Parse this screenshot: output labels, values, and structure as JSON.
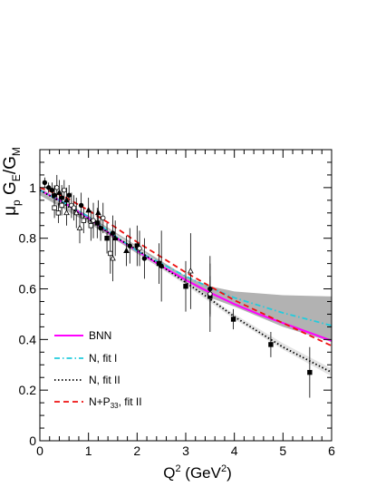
{
  "chart_data": {
    "type": "line",
    "title": "",
    "ylabel": {
      "base": "μ",
      "sub1": "p",
      "mid": " G",
      "sub2": "E",
      "slash": "/G",
      "sub3": "M"
    },
    "xlabel": {
      "base": "Q",
      "sup1": "2",
      "mid": " (GeV",
      "sup2": "2",
      "end": ")"
    },
    "xlim": [
      0,
      6
    ],
    "ylim": [
      0,
      1.15
    ],
    "x_ticks": [
      0,
      1,
      2,
      3,
      4,
      5,
      6
    ],
    "y_ticks": [
      0,
      0.2,
      0.4,
      0.6,
      0.8,
      1
    ],
    "x_tick_labels": [
      "0",
      "1",
      "2",
      "3",
      "4",
      "5",
      "6"
    ],
    "y_tick_labels": [
      "0",
      "0.2",
      "0.4",
      "0.6",
      "0.8",
      "1"
    ],
    "grid": false,
    "legend_position": "lower-left",
    "legend": [
      {
        "label": "BNN",
        "sub": "",
        "suffix": "",
        "color": "#ff00ff",
        "dash": "solid"
      },
      {
        "label": "N, fit I",
        "sub": "",
        "suffix": "",
        "color": "#22ccdd",
        "dash": "dashdot"
      },
      {
        "label": "N, fit II",
        "sub": "",
        "suffix": "",
        "color": "#000000",
        "dash": "dotted"
      },
      {
        "label": "N+P",
        "sub": "33",
        "suffix": ", fit II",
        "color": "#ee1111",
        "dash": "dashed"
      }
    ],
    "bands": [
      {
        "name": "BNN band",
        "color": "#aaaaaa",
        "x": [
          0,
          1,
          2,
          3,
          3.5,
          4,
          5,
          6
        ],
        "upper": [
          1.0,
          0.89,
          0.77,
          0.65,
          0.61,
          0.59,
          0.575,
          0.57
        ],
        "lower": [
          0.97,
          0.86,
          0.74,
          0.62,
          0.565,
          0.53,
          0.45,
          0.39
        ]
      },
      {
        "name": "N fit II band",
        "color": "#dddddd",
        "x": [
          0,
          1,
          2,
          3,
          4,
          5,
          6
        ],
        "upper": [
          1.0,
          0.885,
          0.765,
          0.635,
          0.5,
          0.385,
          0.285
        ],
        "lower": [
          0.985,
          0.87,
          0.745,
          0.615,
          0.48,
          0.36,
          0.255
        ]
      }
    ],
    "series": [
      {
        "name": "BNN",
        "color": "#ff00ff",
        "dash": "solid",
        "x": [
          0,
          0.5,
          1,
          1.5,
          2,
          2.5,
          3,
          3.5,
          4,
          4.5,
          5,
          5.5,
          6
        ],
        "y": [
          0.99,
          0.94,
          0.88,
          0.81,
          0.75,
          0.69,
          0.635,
          0.585,
          0.54,
          0.5,
          0.465,
          0.43,
          0.395
        ]
      },
      {
        "name": "N, fit I",
        "color": "#22ccdd",
        "dash": "dashdot",
        "x": [
          0,
          0.5,
          1,
          1.5,
          2,
          2.5,
          3,
          3.5,
          4,
          4.5,
          5,
          5.5,
          6
        ],
        "y": [
          0.99,
          0.94,
          0.885,
          0.815,
          0.75,
          0.7,
          0.65,
          0.605,
          0.565,
          0.535,
          0.505,
          0.48,
          0.455
        ]
      },
      {
        "name": "N, fit II",
        "color": "#000000",
        "dash": "dotted",
        "x": [
          0,
          0.5,
          1,
          1.5,
          2,
          2.5,
          3,
          3.5,
          4,
          4.5,
          5,
          5.5,
          6
        ],
        "y": [
          0.99,
          0.935,
          0.875,
          0.81,
          0.755,
          0.69,
          0.625,
          0.56,
          0.49,
          0.43,
          0.37,
          0.32,
          0.27
        ]
      },
      {
        "name": "N+P33, fit II",
        "color": "#ee1111",
        "dash": "dashed",
        "x": [
          0,
          0.5,
          1,
          1.5,
          2,
          2.5,
          3,
          3.5,
          4,
          4.5,
          5,
          5.5,
          6
        ],
        "y": [
          1.0,
          0.965,
          0.91,
          0.85,
          0.785,
          0.725,
          0.665,
          0.61,
          0.555,
          0.51,
          0.465,
          0.42,
          0.375
        ]
      }
    ],
    "points": [
      {
        "x": 0.1,
        "y": 1.02,
        "err": 0.02,
        "marker": "circle-filled"
      },
      {
        "x": 0.18,
        "y": 1.0,
        "err": 0.02,
        "marker": "circle-filled"
      },
      {
        "x": 0.25,
        "y": 0.99,
        "err": 0.03,
        "marker": "circle-filled"
      },
      {
        "x": 0.3,
        "y": 0.97,
        "err": 0.04,
        "marker": "circle-filled"
      },
      {
        "x": 0.35,
        "y": 1.0,
        "err": 0.05,
        "marker": "circle-open"
      },
      {
        "x": 0.4,
        "y": 0.98,
        "err": 0.05,
        "marker": "triangle-filled"
      },
      {
        "x": 0.45,
        "y": 0.96,
        "err": 0.05,
        "marker": "circle-filled"
      },
      {
        "x": 0.5,
        "y": 0.99,
        "err": 0.04,
        "marker": "circle-open"
      },
      {
        "x": 0.55,
        "y": 0.95,
        "err": 0.05,
        "marker": "triangle-filled"
      },
      {
        "x": 0.6,
        "y": 0.97,
        "err": 0.04,
        "marker": "circle-filled"
      },
      {
        "x": 0.65,
        "y": 0.93,
        "err": 0.05,
        "marker": "circle-open"
      },
      {
        "x": 0.3,
        "y": 0.92,
        "err": 0.04,
        "marker": "square-open"
      },
      {
        "x": 0.38,
        "y": 0.9,
        "err": 0.04,
        "marker": "square-open"
      },
      {
        "x": 0.45,
        "y": 0.93,
        "err": 0.04,
        "marker": "square-open"
      },
      {
        "x": 0.55,
        "y": 0.9,
        "err": 0.05,
        "marker": "triangle-open"
      },
      {
        "x": 0.7,
        "y": 0.92,
        "err": 0.05,
        "marker": "circle-open"
      },
      {
        "x": 0.75,
        "y": 0.9,
        "err": 0.06,
        "marker": "triangle-open"
      },
      {
        "x": 0.85,
        "y": 0.93,
        "err": 0.05,
        "marker": "circle-filled"
      },
      {
        "x": 0.82,
        "y": 0.84,
        "err": 0.06,
        "marker": "triangle-open"
      },
      {
        "x": 0.9,
        "y": 0.87,
        "err": 0.05,
        "marker": "square-open"
      },
      {
        "x": 1.0,
        "y": 0.91,
        "err": 0.05,
        "marker": "triangle-filled"
      },
      {
        "x": 1.05,
        "y": 0.85,
        "err": 0.06,
        "marker": "square-open"
      },
      {
        "x": 1.1,
        "y": 0.87,
        "err": 0.07,
        "marker": "circle-open"
      },
      {
        "x": 1.18,
        "y": 0.86,
        "err": 0.06,
        "marker": "square-filled"
      },
      {
        "x": 1.2,
        "y": 0.9,
        "err": 0.05,
        "marker": "triangle-filled"
      },
      {
        "x": 1.25,
        "y": 0.84,
        "err": 0.05,
        "marker": "circle-filled"
      },
      {
        "x": 1.3,
        "y": 0.88,
        "err": 0.06,
        "marker": "circle-open"
      },
      {
        "x": 1.38,
        "y": 0.8,
        "err": 0.06,
        "marker": "square-filled"
      },
      {
        "x": 1.45,
        "y": 0.74,
        "err": 0.08,
        "marker": "square-open"
      },
      {
        "x": 1.5,
        "y": 0.82,
        "err": 0.07,
        "marker": "circle-filled"
      },
      {
        "x": 1.5,
        "y": 0.72,
        "err": 0.09,
        "marker": "triangle-open"
      },
      {
        "x": 1.55,
        "y": 0.8,
        "err": 0.07,
        "marker": "triangle-filled"
      },
      {
        "x": 1.78,
        "y": 0.75,
        "err": 0.06,
        "marker": "triangle-filled"
      },
      {
        "x": 1.85,
        "y": 0.77,
        "err": 0.07,
        "marker": "circle-filled"
      },
      {
        "x": 2.0,
        "y": 0.77,
        "err": 0.08,
        "marker": "square-filled"
      },
      {
        "x": 2.05,
        "y": 0.76,
        "err": 0.07,
        "marker": "circle-open"
      },
      {
        "x": 2.15,
        "y": 0.72,
        "err": 0.08,
        "marker": "circle-filled"
      },
      {
        "x": 2.45,
        "y": 0.7,
        "err": 0.08,
        "marker": "square-filled"
      },
      {
        "x": 2.5,
        "y": 0.69,
        "err": 0.14,
        "marker": "circle-filled"
      },
      {
        "x": 3.0,
        "y": 0.61,
        "err": 0.1,
        "marker": "square-filled"
      },
      {
        "x": 3.1,
        "y": 0.67,
        "err": 0.15,
        "marker": "triangle-open"
      },
      {
        "x": 3.5,
        "y": 0.6,
        "err": 0.1,
        "marker": "circle-filled"
      },
      {
        "x": 3.5,
        "y": 0.57,
        "err": 0.08,
        "marker": "square-filled"
      },
      {
        "x": 3.5,
        "y": 0.58,
        "err": 0.15,
        "marker": "circle-open"
      },
      {
        "x": 3.98,
        "y": 0.48,
        "err": 0.04,
        "marker": "square-filled"
      },
      {
        "x": 4.75,
        "y": 0.38,
        "err": 0.05,
        "marker": "square-filled"
      },
      {
        "x": 5.55,
        "y": 0.27,
        "err": 0.1,
        "marker": "square-filled"
      }
    ]
  }
}
